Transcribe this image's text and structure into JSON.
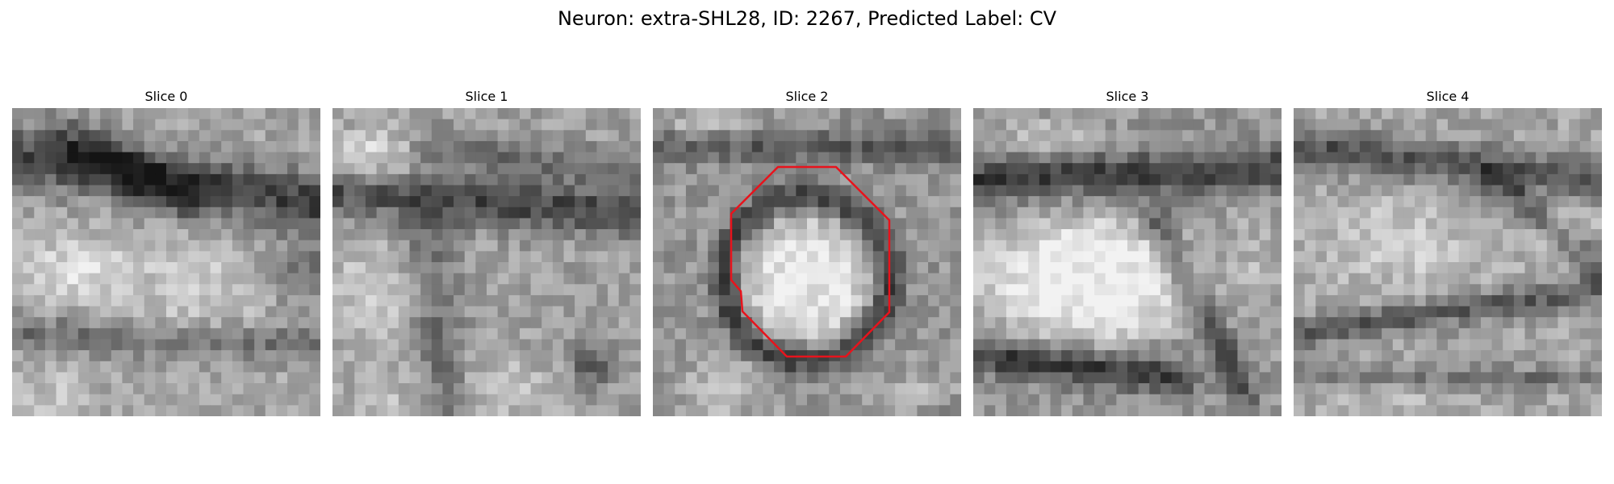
{
  "figure": {
    "title": "Neuron: extra-SHL28, ID: 2267, Predicted Label: CV"
  },
  "panels": [
    {
      "label": "Slice 0"
    },
    {
      "label": "Slice 1"
    },
    {
      "label": "Slice 2"
    },
    {
      "label": "Slice 3"
    },
    {
      "label": "Slice 4"
    }
  ],
  "colors": {
    "background": "#ffffff",
    "outline": "#e8131c",
    "pixel_dark": "#141414",
    "pixel_light": "#f2f2f2"
  }
}
